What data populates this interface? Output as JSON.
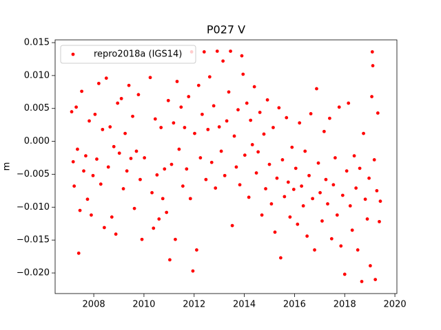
{
  "chart_data": {
    "type": "scatter",
    "title": "P027 V",
    "ylabel": "m",
    "legend": "upper left",
    "grid": false,
    "xlim": [
      2006.46,
      2020.08
    ],
    "ylim": [
      -0.02313,
      0.01542
    ],
    "xticks": [
      2008,
      2010,
      2012,
      2014,
      2016,
      2018,
      2020
    ],
    "yticks": [
      {
        "value": 0.015,
        "label": "0.015"
      },
      {
        "value": 0.01,
        "label": "0.010"
      },
      {
        "value": 0.005,
        "label": "0.005"
      },
      {
        "value": 0,
        "label": "0.000"
      },
      {
        "value": -0.005,
        "label": "−0.005"
      },
      {
        "value": -0.01,
        "label": "−0.010"
      },
      {
        "value": -0.015,
        "label": "−0.015"
      },
      {
        "value": -0.02,
        "label": "−0.020"
      }
    ],
    "series": [
      {
        "name": "repro2018a (IGS14)",
        "color": "#ff0000",
        "x": [
          2007.12,
          2007.18,
          2007.22,
          2007.3,
          2007.35,
          2007.4,
          2007.45,
          2007.52,
          2007.6,
          2007.68,
          2007.75,
          2007.82,
          2007.9,
          2007.97,
          2008.05,
          2008.12,
          2008.2,
          2008.28,
          2008.35,
          2008.42,
          2008.5,
          2008.58,
          2008.65,
          2008.72,
          2008.8,
          2008.88,
          2008.95,
          2009.02,
          2009.1,
          2009.18,
          2009.25,
          2009.32,
          2009.4,
          2009.48,
          2009.55,
          2009.62,
          2009.7,
          2009.78,
          2009.85,
          2009.92,
          2010.02,
          2010.25,
          2010.32,
          2010.38,
          2010.45,
          2010.52,
          2010.6,
          2010.68,
          2010.75,
          2010.82,
          2010.9,
          2010.97,
          2011.03,
          2011.1,
          2011.18,
          2011.25,
          2011.32,
          2011.4,
          2011.48,
          2011.55,
          2011.62,
          2011.7,
          2011.78,
          2011.85,
          2011.9,
          2011.95,
          2012.02,
          2012.1,
          2012.18,
          2012.25,
          2012.32,
          2012.4,
          2012.47,
          2012.55,
          2012.62,
          2012.7,
          2012.78,
          2012.85,
          2012.92,
          2013.0,
          2013.08,
          2013.15,
          2013.22,
          2013.3,
          2013.38,
          2013.45,
          2013.52,
          2013.6,
          2013.68,
          2013.75,
          2013.82,
          2013.9,
          2013.95,
          2014.02,
          2014.1,
          2014.18,
          2014.25,
          2014.32,
          2014.4,
          2014.48,
          2014.55,
          2014.62,
          2014.7,
          2014.78,
          2014.85,
          2014.92,
          2015.0,
          2015.08,
          2015.15,
          2015.22,
          2015.3,
          2015.38,
          2015.45,
          2015.52,
          2015.6,
          2015.68,
          2015.75,
          2015.82,
          2015.9,
          2015.97,
          2016.05,
          2016.12,
          2016.2,
          2016.28,
          2016.35,
          2016.42,
          2016.5,
          2016.58,
          2016.65,
          2016.72,
          2016.8,
          2016.88,
          2016.95,
          2017.02,
          2017.1,
          2017.18,
          2017.25,
          2017.32,
          2017.4,
          2017.48,
          2017.55,
          2017.62,
          2017.7,
          2017.78,
          2017.85,
          2017.92,
          2018.0,
          2018.08,
          2018.15,
          2018.22,
          2018.3,
          2018.38,
          2018.45,
          2018.52,
          2018.6,
          2018.68,
          2018.75,
          2018.82,
          2018.9,
          2018.97,
          2019.02,
          2019.08,
          2019.1,
          2019.12,
          2019.18,
          2019.22,
          2019.28,
          2019.32,
          2019.38,
          2019.42
        ],
        "values": [
          0.0045,
          -0.0031,
          -0.0068,
          0.0052,
          -0.0012,
          -0.017,
          -0.0105,
          0.0076,
          -0.0045,
          -0.0022,
          -0.0088,
          0.0031,
          -0.0112,
          -0.0052,
          0.0041,
          -0.0027,
          0.0088,
          -0.0065,
          0.0018,
          -0.0131,
          0.0096,
          -0.0039,
          0.0022,
          -0.0115,
          -0.0008,
          -0.0141,
          0.0058,
          -0.0018,
          0.0065,
          -0.0072,
          0.0012,
          -0.0045,
          0.0085,
          -0.0026,
          0.0038,
          -0.0102,
          -0.0015,
          0.0071,
          -0.0058,
          -0.0149,
          -0.0025,
          0.0097,
          -0.0078,
          -0.0132,
          0.0034,
          -0.0051,
          -0.0118,
          0.0021,
          -0.0087,
          -0.0042,
          -0.0108,
          0.0062,
          -0.018,
          -0.0035,
          0.0028,
          -0.0149,
          0.0091,
          -0.0012,
          0.0052,
          -0.0068,
          0.0021,
          -0.0042,
          0.0068,
          -0.0087,
          0.0136,
          -0.0197,
          0.0012,
          -0.0165,
          0.0085,
          -0.0025,
          0.0041,
          0.0136,
          -0.0058,
          0.0018,
          0.0098,
          -0.0032,
          0.0054,
          -0.0071,
          0.0137,
          0.0022,
          -0.0015,
          0.0122,
          -0.0052,
          0.0031,
          0.0075,
          0.0137,
          -0.0128,
          0.0008,
          -0.0039,
          0.0048,
          -0.0066,
          0.013,
          0.0102,
          -0.0021,
          0.0058,
          -0.0085,
          0.0032,
          -0.0005,
          0.0083,
          -0.0048,
          -0.0016,
          0.0044,
          -0.0112,
          0.0011,
          -0.0072,
          0.0063,
          -0.0035,
          -0.0095,
          0.0021,
          -0.0138,
          -0.0056,
          0.0051,
          -0.0177,
          -0.0028,
          -0.0084,
          0.0036,
          -0.0062,
          -0.0115,
          -0.0009,
          -0.0073,
          -0.0041,
          -0.0126,
          0.0028,
          -0.0068,
          -0.0098,
          -0.0015,
          -0.0144,
          -0.0052,
          0.0042,
          -0.0087,
          -0.0165,
          0.008,
          -0.0033,
          -0.0078,
          -0.0121,
          0.0015,
          -0.0058,
          -0.0095,
          0.0035,
          -0.0148,
          -0.0066,
          -0.0025,
          -0.0112,
          0.0052,
          -0.0159,
          -0.0082,
          -0.0202,
          -0.0045,
          0.0058,
          -0.0098,
          -0.0135,
          -0.0022,
          -0.0071,
          -0.0165,
          -0.0041,
          -0.0213,
          0.0012,
          -0.0088,
          -0.0118,
          -0.0056,
          -0.0189,
          0.0068,
          0.0136,
          0.0115,
          -0.0028,
          -0.021,
          -0.0075,
          0.0043,
          -0.0122,
          -0.0091
        ]
      }
    ]
  }
}
